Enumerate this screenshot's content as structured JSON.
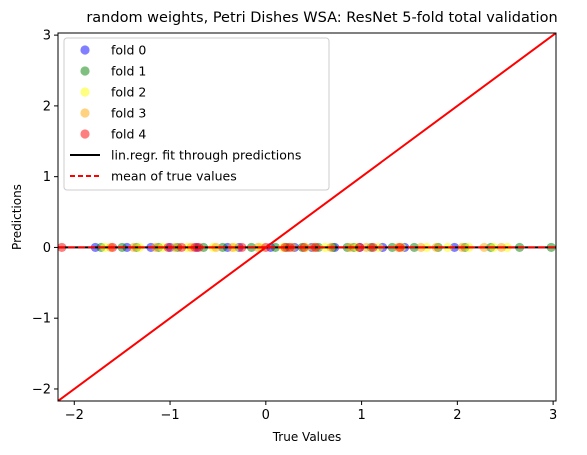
{
  "chart_data": {
    "type": "scatter",
    "title": "random weights, Petri Dishes WSA: ResNet 5-fold total validation",
    "xlabel": "True Values",
    "ylabel": "Predictions",
    "xlim": [
      -2.17,
      3.03
    ],
    "ylim": [
      -2.17,
      3.03
    ],
    "xticks": [
      -2,
      -1,
      0,
      1,
      2,
      3
    ],
    "yticks": [
      -2,
      -1,
      0,
      1,
      2,
      3
    ],
    "xtick_labels": [
      "−2",
      "−1",
      "0",
      "1",
      "2",
      "3"
    ],
    "ytick_labels": [
      "−2",
      "−1",
      "0",
      "1",
      "2",
      "3"
    ],
    "legend_position": "top-left",
    "series": [
      {
        "name": "fold 0",
        "color": "#0000ff",
        "x": [
          -1.78,
          -1.45,
          -1.2,
          -1.0,
          -0.72,
          -0.4,
          -0.28,
          0.05,
          0.3,
          0.48,
          0.72,
          0.98,
          1.22,
          1.45,
          1.97
        ],
        "y": [
          0.0,
          0.0,
          0.0,
          0.0,
          0.0,
          0.0,
          0.0,
          0.0,
          0.0,
          0.0,
          0.0,
          0.0,
          0.0,
          0.0,
          0.0
        ]
      },
      {
        "name": "fold 1",
        "color": "#008000",
        "x": [
          -1.72,
          -1.5,
          -1.35,
          -1.12,
          -0.92,
          -0.65,
          -0.45,
          -0.15,
          0.1,
          0.22,
          0.38,
          0.55,
          0.7,
          0.85,
          0.92,
          1.1,
          1.32,
          1.55,
          1.8,
          2.08,
          2.35,
          2.65,
          2.98
        ],
        "y": [
          0.0,
          0.0,
          0.0,
          0.0,
          0.0,
          0.0,
          0.0,
          0.0,
          0.0,
          0.0,
          0.0,
          0.0,
          0.0,
          0.0,
          0.0,
          0.0,
          0.0,
          0.0,
          0.0,
          0.0,
          0.0,
          0.0,
          0.0
        ]
      },
      {
        "name": "fold 2",
        "color": "#ffff00",
        "x": [
          -1.68,
          -1.32,
          -1.08,
          -0.82,
          -0.55,
          -0.32,
          -0.05,
          0.18,
          0.42,
          0.62,
          0.95,
          1.18,
          1.42,
          1.68,
          1.9,
          2.12,
          2.38,
          2.52
        ],
        "y": [
          0.0,
          0.0,
          0.0,
          0.0,
          0.0,
          0.0,
          0.0,
          0.0,
          0.0,
          0.0,
          0.0,
          0.0,
          0.0,
          0.0,
          0.0,
          0.0,
          0.0,
          0.0
        ]
      },
      {
        "name": "fold 3",
        "color": "#ffa500",
        "x": [
          -1.62,
          -1.38,
          -1.15,
          -0.95,
          -0.78,
          -0.52,
          -0.35,
          -0.08,
          0.28,
          0.5,
          0.68,
          0.88,
          1.05,
          1.38,
          1.62,
          1.78,
          2.05,
          2.28,
          2.46
        ],
        "y": [
          0.0,
          0.0,
          0.0,
          0.0,
          0.0,
          0.0,
          0.0,
          0.0,
          0.0,
          0.0,
          0.0,
          0.0,
          0.0,
          0.0,
          0.0,
          0.0,
          0.0,
          0.0,
          0.0
        ]
      },
      {
        "name": "fold 4",
        "color": "#ff0000",
        "x": [
          -2.13,
          -1.6,
          -1.02,
          -0.88,
          -0.74,
          -0.7,
          -0.25,
          0.0,
          0.2,
          0.25,
          0.4,
          0.52,
          0.98,
          1.12,
          1.4
        ],
        "y": [
          0.0,
          0.0,
          0.0,
          0.0,
          0.0,
          0.0,
          0.0,
          0.0,
          0.0,
          0.0,
          0.0,
          0.0,
          0.0,
          0.0,
          0.0
        ]
      }
    ],
    "lines": [
      {
        "name": "lin.regr. fit through predictions",
        "color": "#000000",
        "style": "solid",
        "slope": 0.0,
        "intercept": 0.0
      },
      {
        "name": "mean of true values",
        "color": "#ff0000",
        "style": "dashed",
        "slope": 0.0,
        "intercept": 0.0
      },
      {
        "name": "identity",
        "color": "#ff0000",
        "style": "solid",
        "slope": 1.0,
        "intercept": 0.0
      }
    ]
  }
}
